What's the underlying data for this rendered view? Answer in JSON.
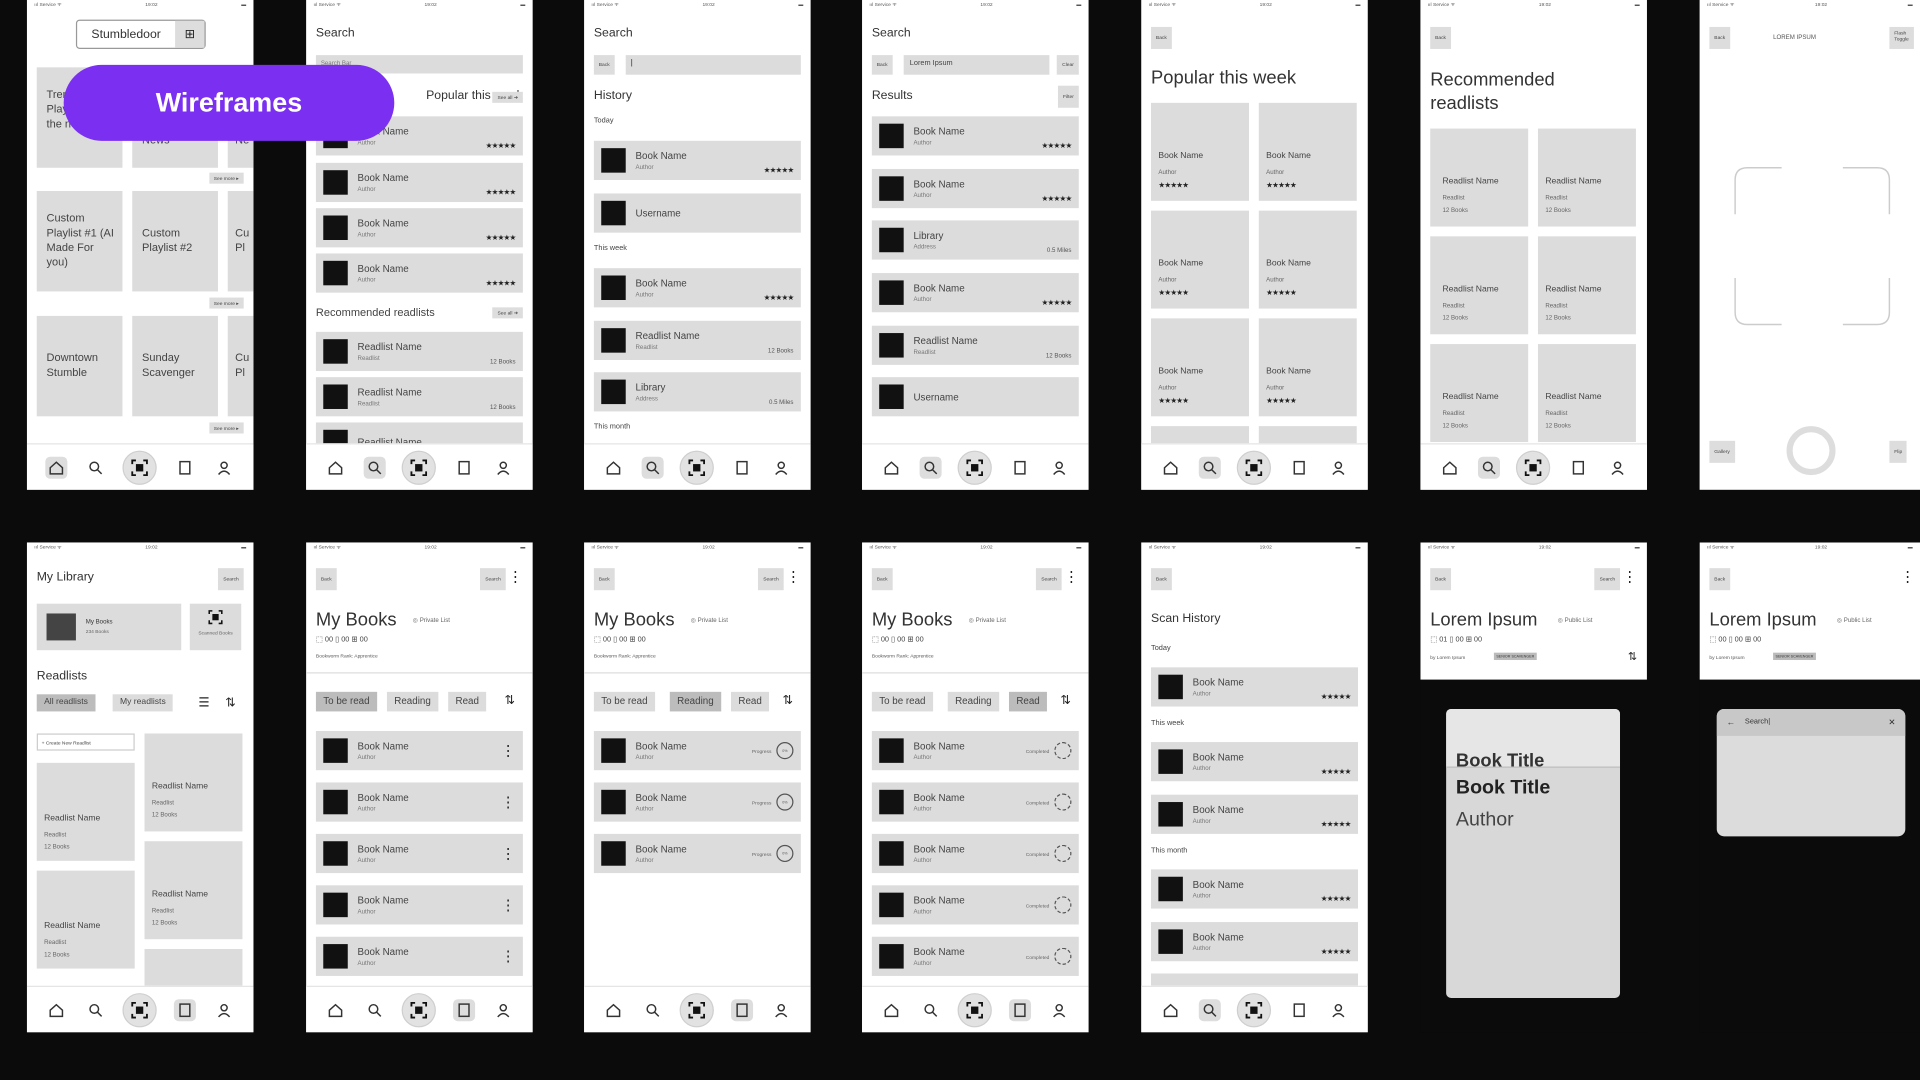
{
  "status": {
    "left": "ııl Service ᯤ",
    "time": "19:02"
  },
  "banner": {
    "label": "Wireframes"
  },
  "home": {
    "app_title": "Stumbledoor",
    "tile_r1": [
      "Trending Playlist / In the news",
      "News",
      "Ne"
    ],
    "see_more": "See more ▸",
    "tile_r2": [
      "Custom Playlist #1 (AI Made For you)",
      "Custom Playlist #2",
      "Cu Pl"
    ],
    "tile_r3": [
      "Downtown Stumble",
      "Sunday Scavenger",
      "Cu Pl"
    ]
  },
  "search": {
    "title": "Search",
    "placeholder": "Search Bar",
    "popular_section": "Popular this week",
    "see_all": "See all ➔",
    "book_name": "Book Name",
    "author": "Author",
    "stars": "★★★★★",
    "recommended_section": "Recommended readlists",
    "readlist_name": "Readlist Name",
    "readlist": "Readlist",
    "books_count": "12 Books"
  },
  "history": {
    "title": "Search",
    "back": "Back",
    "section": "History",
    "today": "Today",
    "this_week": "This week",
    "this_month": "This month",
    "username": "Username",
    "library": "Library",
    "address": "Address",
    "distance": "0.5 Miles"
  },
  "results": {
    "title": "Search",
    "query": "Lorem Ipsum",
    "clear": "Clear",
    "section": "Results",
    "filter": "Filter"
  },
  "popular": {
    "title": "Popular this week"
  },
  "recommended": {
    "title": "Recommended readlists"
  },
  "camera": {
    "title": "LOREM IPSUM",
    "flash": "Flash Toggle",
    "gallery": "Gallery",
    "flip": "Flip"
  },
  "library": {
    "title": "My Library",
    "search": "Search",
    "my_books": "My Books",
    "my_books_count": "234 Books",
    "scanned": "Scanned Books",
    "readlists": "Readlists",
    "all_readlists": "All readlists",
    "my_readlists": "My readlists",
    "create_new": "+ Create New Readlist"
  },
  "mybooks": {
    "title": "My Books",
    "privacy": "◎ Private List",
    "stats": "⬚ 00  ▯ 00  ⊞ 00",
    "rank": "Bookworm Rank: Apprentice",
    "tabs": [
      "To be read",
      "Reading",
      "Read"
    ],
    "progress": "Progress",
    "pct": "0%",
    "completed": "Completed"
  },
  "scan_history": {
    "title": "Scan History"
  },
  "lorem": {
    "title": "Lorem Ipsum",
    "privacy": "◎ Public List",
    "stats": "⬚ 01  ▯ 00  ⊞ 00",
    "by": "by Lorem Ipsum",
    "badge": "SENIOR SCAVENGER",
    "book_title": "Book Title",
    "author": "Author",
    "search_text": "Search|"
  }
}
